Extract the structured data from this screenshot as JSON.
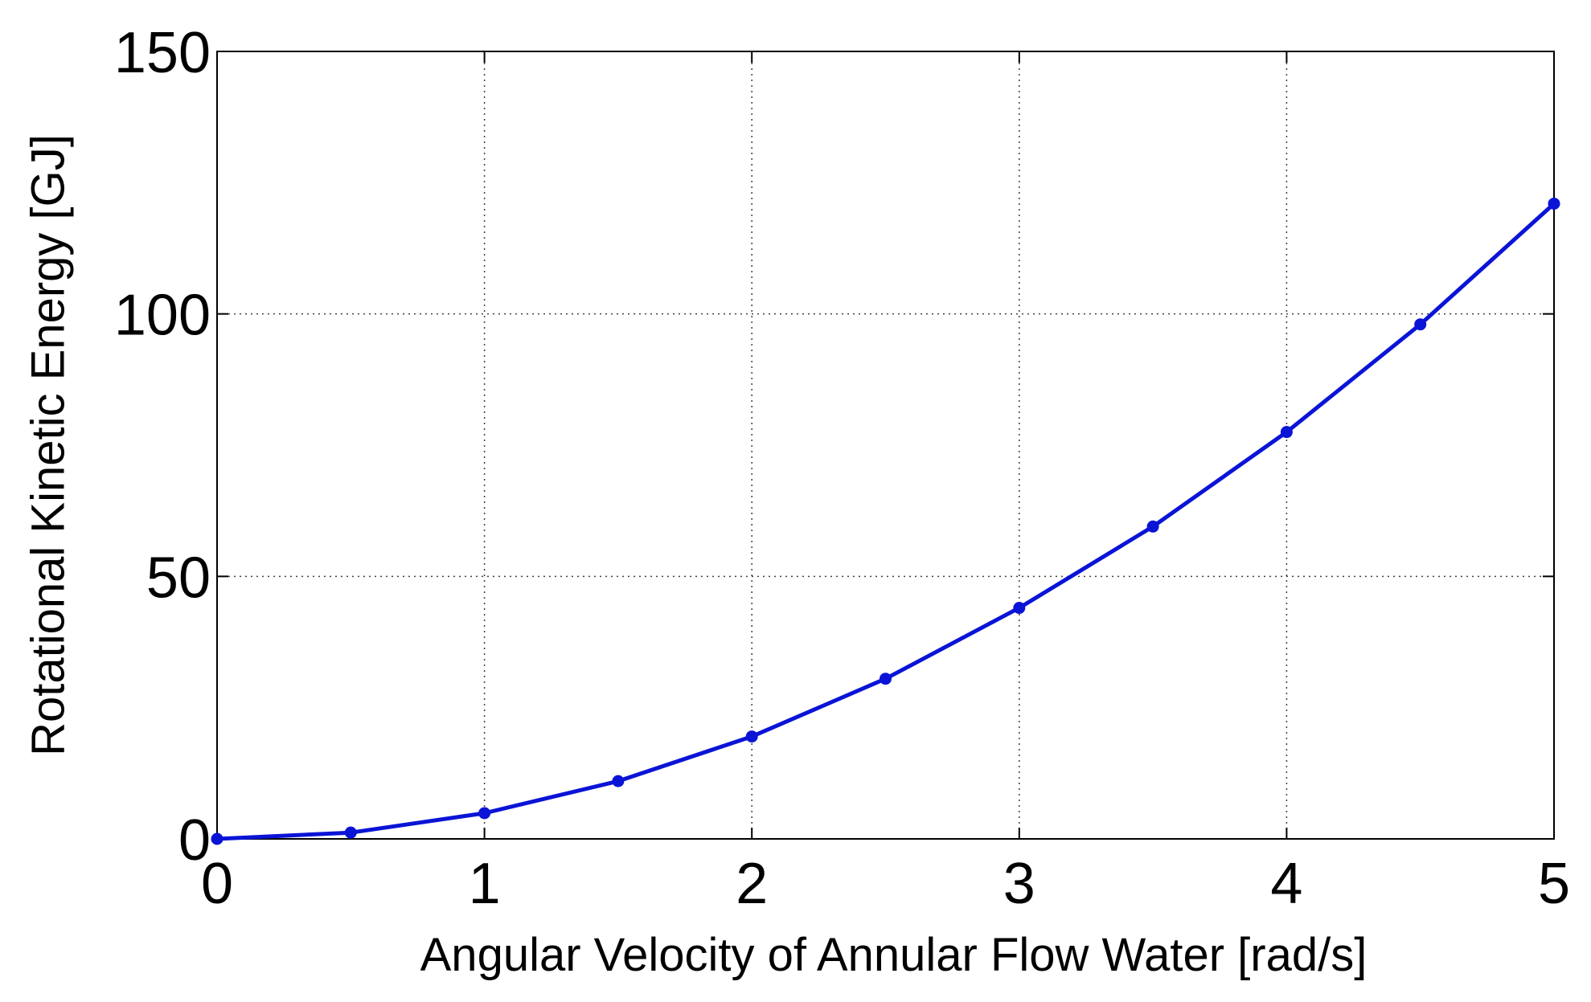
{
  "chart_data": {
    "type": "line",
    "title": "",
    "xlabel": "Angular Velocity of Annular Flow Water [rad/s]",
    "ylabel": "Rotational Kinetic Energy [GJ]",
    "xlim": [
      0,
      5
    ],
    "ylim": [
      0,
      150
    ],
    "xticks": [
      0,
      1,
      2,
      3,
      4,
      5
    ],
    "yticks": [
      0,
      50,
      100,
      150
    ],
    "xtick_labels": [
      "0",
      "1",
      "2",
      "3",
      "4",
      "5"
    ],
    "ytick_labels": [
      "0",
      "50",
      "100",
      "150"
    ],
    "grid": true,
    "legend": "none",
    "series": [
      {
        "name": "Rotational Kinetic Energy",
        "color": "#0a14d6",
        "marker": "circle",
        "x": [
          0,
          0.5,
          1,
          1.5,
          2,
          2.5,
          3,
          3.5,
          4,
          4.5,
          5
        ],
        "y": [
          0,
          1.2,
          4.9,
          11,
          19.5,
          30.5,
          44,
          59.5,
          77.5,
          98,
          121
        ]
      }
    ]
  }
}
